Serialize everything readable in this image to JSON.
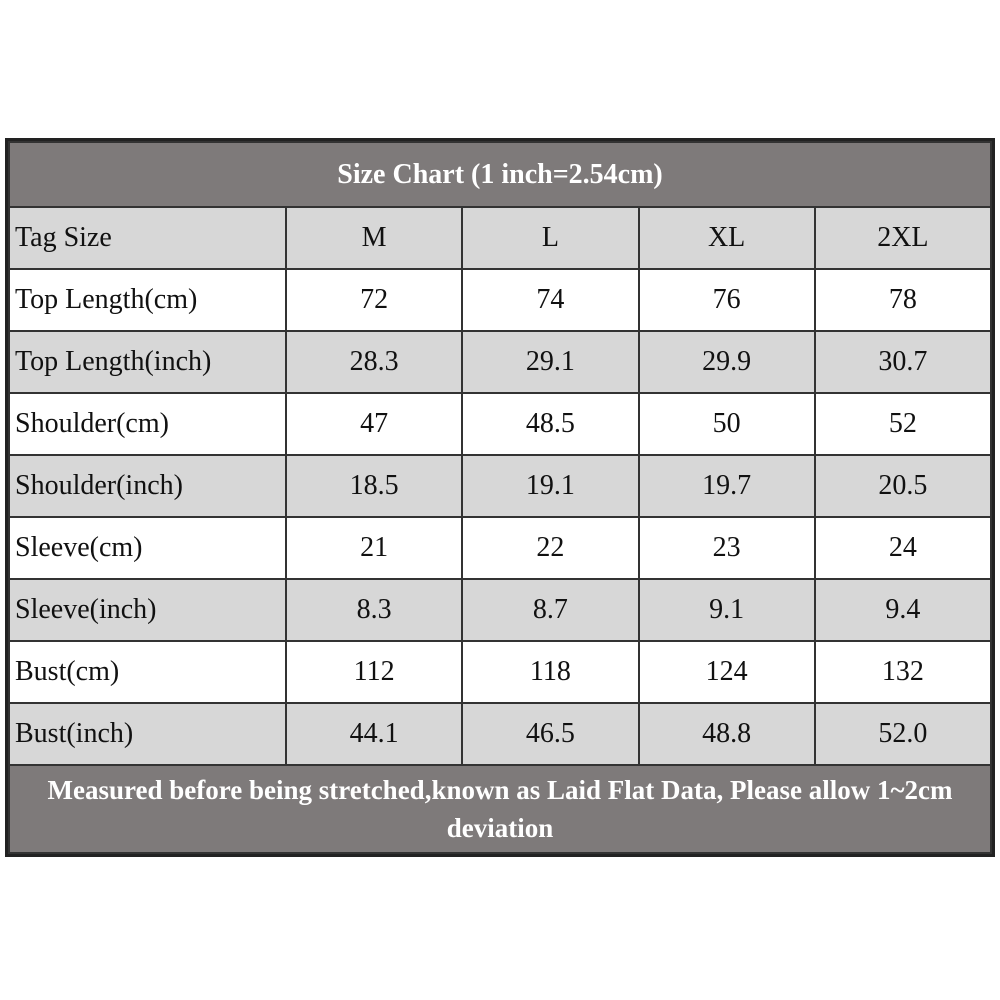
{
  "title": "Size Chart (1 inch=2.54cm)",
  "header": [
    "Tag Size",
    "M",
    "L",
    "XL",
    "2XL"
  ],
  "rows": [
    [
      "Top Length(cm)",
      "72",
      "74",
      "76",
      "78"
    ],
    [
      "Top Length(inch)",
      "28.3",
      "29.1",
      "29.9",
      "30.7"
    ],
    [
      "Shoulder(cm)",
      "47",
      "48.5",
      "50",
      "52"
    ],
    [
      "Shoulder(inch)",
      "18.5",
      "19.1",
      "19.7",
      "20.5"
    ],
    [
      "Sleeve(cm)",
      "21",
      "22",
      "23",
      "24"
    ],
    [
      "Sleeve(inch)",
      "8.3",
      "8.7",
      "9.1",
      "9.4"
    ],
    [
      "Bust(cm)",
      "112",
      "118",
      "124",
      "132"
    ],
    [
      "Bust(inch)",
      "44.1",
      "46.5",
      "48.8",
      "52.0"
    ]
  ],
  "note": "Measured before being stretched,known as Laid Flat Data, Please allow 1~2cm deviation"
}
